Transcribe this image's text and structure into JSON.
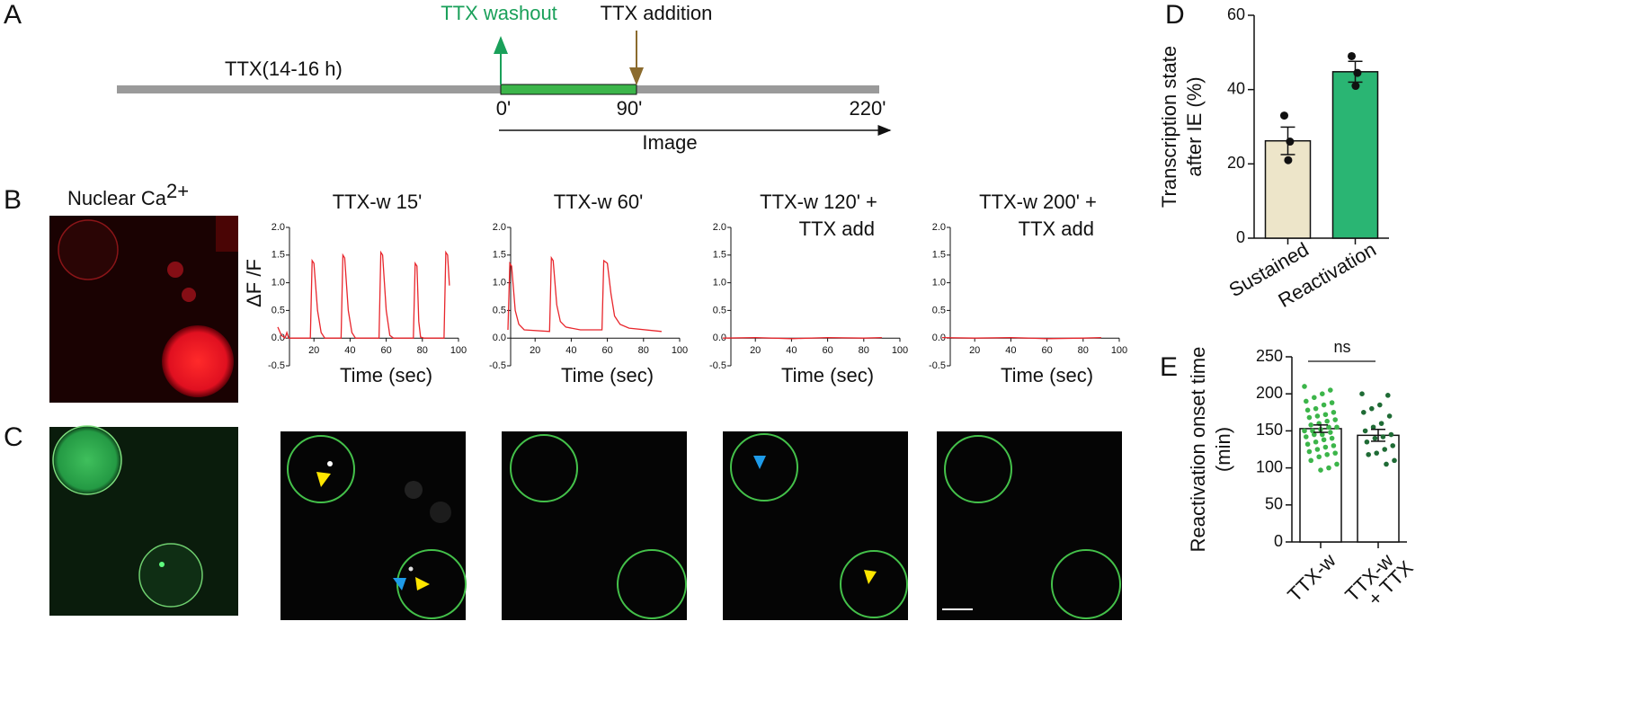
{
  "panel_labels": [
    "A",
    "B",
    "C",
    "D",
    "E"
  ],
  "timeline": {
    "washout": "TTX washout",
    "addition": "TTX addition",
    "pretreat": "TTX(14-16 h)",
    "times": [
      "0'",
      "90'",
      "220'"
    ],
    "image": "Image"
  },
  "panel_b": {
    "label_text": "Nuclear Ca",
    "label_sup": "2+"
  },
  "chart_data": [
    {
      "type": "line",
      "title": [
        "TTX-w 15'"
      ],
      "ylabel": "ΔF /F",
      "xlabel": "Time (sec)",
      "color": "#e8262c",
      "x": [
        0,
        2,
        4,
        5,
        6,
        18,
        19,
        20,
        22,
        24,
        26,
        35,
        36,
        37,
        39,
        41,
        43,
        56,
        57,
        58,
        60,
        62,
        64,
        75,
        76,
        77,
        78,
        79,
        81,
        92,
        93,
        94,
        95
      ],
      "values": [
        0.2,
        0.05,
        0,
        0.1,
        0,
        0,
        1.4,
        1.35,
        0.5,
        0.1,
        0,
        0,
        1.5,
        1.45,
        0.5,
        0.1,
        0,
        0,
        1.55,
        1.5,
        0.5,
        0.05,
        0,
        0,
        1.35,
        1.3,
        0.3,
        0.02,
        0,
        0,
        1.55,
        1.5,
        0.95
      ],
      "xlim": [
        0,
        100
      ],
      "ylim": [
        -0.5,
        2.0
      ],
      "xticks": [
        20,
        40,
        60,
        80,
        100
      ],
      "yticks": [
        -0.5,
        {
          "value": 0,
          "label": "0.0"
        },
        0.5,
        {
          "value": 1,
          "label": "1.0"
        },
        1.5,
        {
          "value": 2,
          "label": "2.0"
        }
      ]
    },
    {
      "type": "line",
      "title": [
        "TTX-w 60'"
      ],
      "xlabel": "Time (sec)",
      "color": "#e8262c",
      "x": [
        5,
        6,
        7,
        9,
        11,
        14,
        28,
        29,
        30,
        32,
        34,
        37,
        45,
        57,
        58,
        60,
        62,
        64,
        67,
        72,
        90
      ],
      "values": [
        0.15,
        1.35,
        1.3,
        0.5,
        0.25,
        0.15,
        0.12,
        1.45,
        1.4,
        0.6,
        0.3,
        0.2,
        0.15,
        0.15,
        1.4,
        1.35,
        0.8,
        0.4,
        0.25,
        0.18,
        0.12
      ],
      "xlim": [
        0,
        100
      ],
      "ylim": [
        -0.5,
        2.0
      ],
      "xticks": [
        20,
        40,
        60,
        80,
        100
      ],
      "yticks": [
        -0.5,
        {
          "value": 0,
          "label": "0.0"
        },
        0.5,
        {
          "value": 1,
          "label": "1.0"
        },
        1.5,
        {
          "value": 2,
          "label": "2.0"
        }
      ]
    },
    {
      "type": "line",
      "title": [
        "TTX-w 120' +",
        "TTX add"
      ],
      "xlabel": "Time (sec)",
      "color": "#e8262c",
      "x": [
        2,
        20,
        40,
        60,
        80,
        90
      ],
      "values": [
        0,
        0.01,
        -0.01,
        0.01,
        0,
        0.01
      ],
      "xlim": [
        0,
        100
      ],
      "ylim": [
        -0.5,
        2.0
      ],
      "xticks": [
        20,
        40,
        60,
        80,
        100
      ],
      "yticks": [
        -0.5,
        {
          "value": 0,
          "label": "0.0"
        },
        0.5,
        {
          "value": 1,
          "label": "1.0"
        },
        1.5,
        {
          "value": 2,
          "label": "2.0"
        }
      ]
    },
    {
      "type": "line",
      "title": [
        "TTX-w 200' +",
        "TTX add"
      ],
      "xlabel": "Time (sec)",
      "color": "#e8262c",
      "x": [
        2,
        20,
        40,
        60,
        80,
        90
      ],
      "values": [
        0.01,
        0,
        0.01,
        -0.01,
        0,
        0.01
      ],
      "xlim": [
        0,
        100
      ],
      "ylim": [
        -0.5,
        2.0
      ],
      "xticks": [
        20,
        40,
        60,
        80,
        100
      ],
      "yticks": [
        -0.5,
        {
          "value": 0,
          "label": "0.0"
        },
        0.5,
        {
          "value": 1,
          "label": "1.0"
        },
        1.5,
        {
          "value": 2,
          "label": "2.0"
        }
      ]
    },
    {
      "type": "bar",
      "ylabel": [
        "Transcription state",
        "after IE (%)"
      ],
      "categories": [
        [
          "Sustained"
        ],
        [
          "Reactivation"
        ]
      ],
      "values": [
        26.2,
        44.8
      ],
      "errors": [
        3.7,
        2.8
      ],
      "colors": [
        "#ede5c9",
        "#2ab573"
      ],
      "points": [
        [
          33,
          26,
          21
        ],
        [
          49,
          44.5,
          41
        ]
      ],
      "point_colors": [
        "#111111",
        "#111111"
      ],
      "ylim": [
        0,
        60
      ],
      "yticks": [
        0,
        20,
        40,
        60
      ]
    },
    {
      "type": "bar",
      "ylabel": [
        "Reactivation onset time",
        "(min)"
      ],
      "categories": [
        [
          "TTX-w"
        ],
        [
          "TTX-w",
          "+ TTX"
        ]
      ],
      "values": [
        153,
        144
      ],
      "errors": [
        5,
        8
      ],
      "colors": [
        "#ffffff",
        "#ffffff"
      ],
      "annotation": "ns",
      "points": [
        [
          210,
          205,
          200,
          195,
          190,
          188,
          185,
          180,
          178,
          175,
          172,
          170,
          168,
          165,
          163,
          160,
          158,
          155,
          155,
          152,
          150,
          150,
          148,
          145,
          145,
          142,
          140,
          138,
          135,
          132,
          130,
          128,
          125,
          122,
          120,
          118,
          115,
          110,
          105,
          100,
          97
        ],
        [
          200,
          198,
          185,
          180,
          175,
          170,
          160,
          155,
          150,
          145,
          142,
          140,
          135,
          130,
          125,
          120,
          118,
          110,
          105
        ]
      ],
      "point_colors": [
        "#3cb54a",
        "#1f6b35"
      ],
      "ylim": [
        0,
        250
      ],
      "yticks": [
        0,
        50,
        100,
        150,
        200,
        250
      ]
    }
  ]
}
